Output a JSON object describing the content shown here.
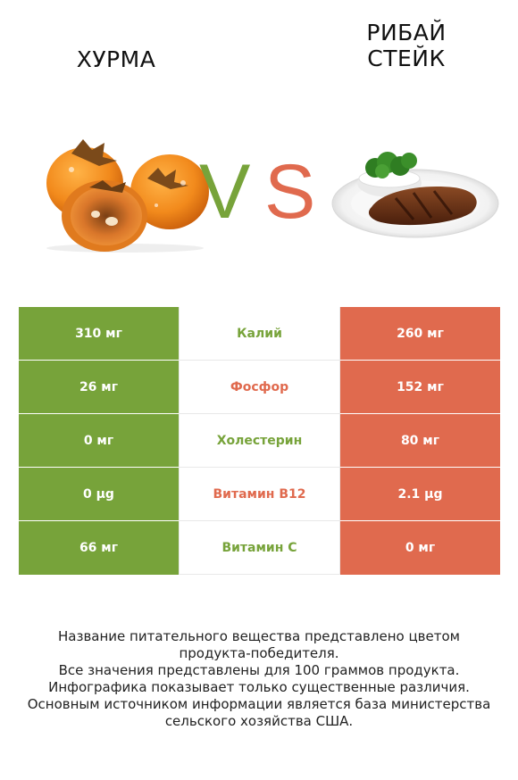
{
  "left_food": {
    "name": "ХУРМА",
    "image": "persimmon-image"
  },
  "right_food": {
    "name_line1": "РИБАЙ",
    "name_line2": "СТЕЙК",
    "image": "ribeye-steak-image"
  },
  "vs": {
    "v": "V",
    "s": "S"
  },
  "colors": {
    "left": "#77a33a",
    "right": "#e06a4e"
  },
  "rows": [
    {
      "left": "310 мг",
      "nutrient": "Калий",
      "right": "260 мг",
      "winner": "left"
    },
    {
      "left": "26 мг",
      "nutrient": "Фосфор",
      "right": "152 мг",
      "winner": "right"
    },
    {
      "left": "0 мг",
      "nutrient": "Холестерин",
      "right": "80 мг",
      "winner": "left"
    },
    {
      "left": "0 µg",
      "nutrient": "Витамин B12",
      "right": "2.1 µg",
      "winner": "right"
    },
    {
      "left": "66 мг",
      "nutrient": "Витамин C",
      "right": "0 мг",
      "winner": "left"
    }
  ],
  "footer": {
    "line1": "Название питательного вещества представлено цветом",
    "line2": "продукта-победителя.",
    "line3": "Все значения представлены для 100 граммов продукта.",
    "line4": "Инфографика показывает только существенные различия.",
    "line5": "Основным источником информации является база министерства",
    "line6": "сельского хозяйства США."
  }
}
